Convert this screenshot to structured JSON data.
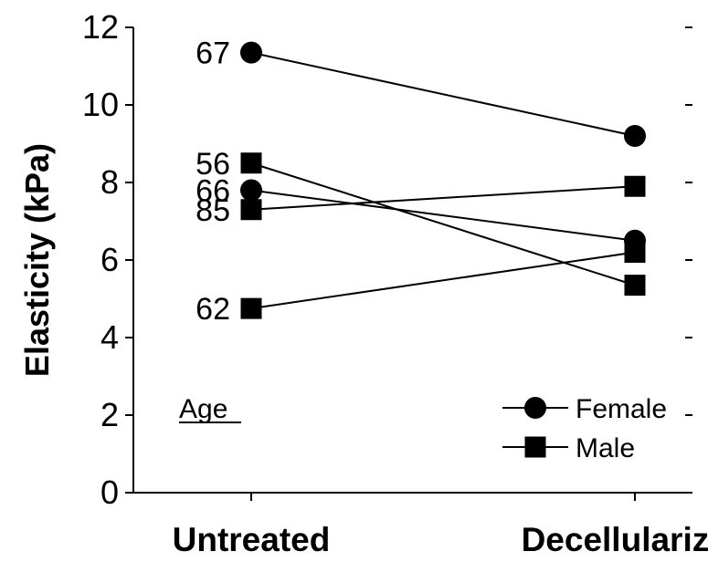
{
  "chart_data": {
    "type": "line",
    "title": "",
    "xlabel": "",
    "ylabel": "Elasticity (kPa)",
    "categories": [
      "Untreated",
      "Decellularized"
    ],
    "ylim": [
      0,
      12
    ],
    "yticks": [
      "0",
      "2",
      "4",
      "6",
      "8",
      "10",
      "12"
    ],
    "grid": false,
    "legend_position": "bottom-right",
    "legend": [
      {
        "label": "Female",
        "marker": "circle"
      },
      {
        "label": "Male",
        "marker": "square"
      }
    ],
    "annotation": "Age",
    "series": [
      {
        "age": "67",
        "sex": "Female",
        "marker": "circle",
        "values": [
          11.35,
          9.2
        ]
      },
      {
        "age": "56",
        "sex": "Male",
        "marker": "square",
        "values": [
          8.5,
          5.35
        ]
      },
      {
        "age": "66",
        "sex": "Female",
        "marker": "circle",
        "values": [
          7.8,
          6.5
        ]
      },
      {
        "age": "85",
        "sex": "Male",
        "marker": "square",
        "values": [
          7.3,
          7.9
        ]
      },
      {
        "age": "62",
        "sex": "Male",
        "marker": "square",
        "values": [
          4.75,
          6.2
        ]
      }
    ]
  }
}
